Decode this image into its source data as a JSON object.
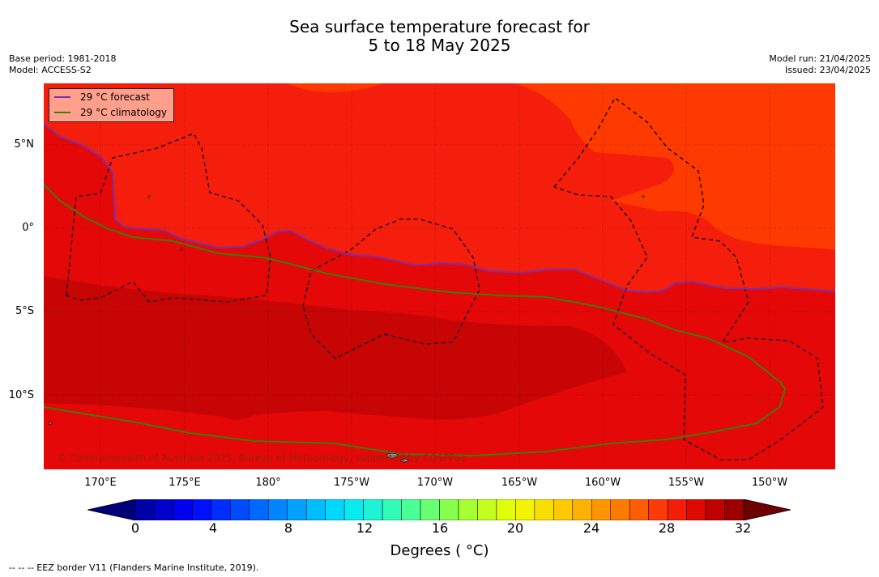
{
  "title_line1": "Sea surface temperature forecast for",
  "title_line2": "5 to 18 May 2025",
  "base_period": "Base period: 1981-2018",
  "model": "Model: ACCESS-S2",
  "model_run": "Model run: 21/04/2025",
  "issued": "Issued: 23/04/2025",
  "legend": {
    "forecast": "29 °C  forecast",
    "climatology": "29 °C  climatology"
  },
  "lat_labels": [
    "5°N",
    "0°",
    "5°S",
    "10°S"
  ],
  "lon_labels": [
    "170°E",
    "175°E",
    "180°",
    "175°W",
    "170°W",
    "165°W",
    "160°W",
    "155°W",
    "150°W"
  ],
  "copyright": "© Commonwealth of Australia 2025, Bureau of Meteorology, supported by COSPPac",
  "colorbar": {
    "ticks": [
      "0",
      "4",
      "8",
      "12",
      "16",
      "20",
      "24",
      "28",
      "32"
    ],
    "label": "Degrees ( °C)"
  },
  "footer": "--  --  -- EEZ border V11 (Flanders Marine Institute, 2019).",
  "colors": {
    "forecast_line": "#7d2fa8",
    "climatology_line": "#3a7d0a",
    "sst_27": "#ff3a00",
    "sst_28": "#f51e0c",
    "sst_29": "#e50808",
    "sst_30": "#c80505"
  },
  "chart_data": {
    "type": "heatmap",
    "title": "Sea surface temperature forecast for 5 to 18 May 2025",
    "x_axis": [
      "170°E",
      "175°E",
      "180°",
      "175°W",
      "170°W",
      "165°W",
      "160°W",
      "155°W",
      "150°W"
    ],
    "y_axis": [
      "5°N",
      "0°",
      "5°S",
      "10°S"
    ],
    "colorbar_range": [
      0,
      32
    ],
    "colorbar_unit": "Degrees ( °C)",
    "series": [
      {
        "name": "29 °C  forecast"
      },
      {
        "name": "29 °C  climatology"
      }
    ]
  }
}
